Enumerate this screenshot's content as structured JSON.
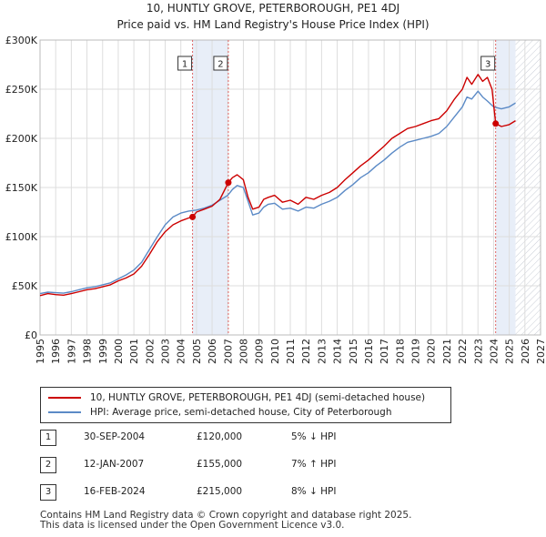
{
  "title_line1": "10, HUNTLY GROVE, PETERBOROUGH, PE1 4DJ",
  "title_line2": "Price paid vs. HM Land Registry's House Price Index (HPI)",
  "colors": {
    "property": "#cc0000",
    "hpi": "#5b8ac6",
    "shade": "#e8eef8",
    "marker_line": "#e06666"
  },
  "chart_data": {
    "type": "line",
    "title": "Price paid vs. HM Land Registry's House Price Index (HPI)",
    "xlabel": "",
    "ylabel": "",
    "xlim": [
      1995,
      2027
    ],
    "ylim": [
      0,
      300000
    ],
    "x_ticks": [
      "1995",
      "1996",
      "1997",
      "1998",
      "1999",
      "2000",
      "2001",
      "2002",
      "2003",
      "2004",
      "2005",
      "2006",
      "2007",
      "2008",
      "2009",
      "2010",
      "2011",
      "2012",
      "2013",
      "2014",
      "2015",
      "2016",
      "2017",
      "2018",
      "2019",
      "2020",
      "2021",
      "2022",
      "2023",
      "2024",
      "2025",
      "2026",
      "2027"
    ],
    "y_ticks": [
      {
        "value": 0,
        "label": "£0"
      },
      {
        "value": 50000,
        "label": "£50K"
      },
      {
        "value": 100000,
        "label": "£100K"
      },
      {
        "value": 150000,
        "label": "£150K"
      },
      {
        "value": 200000,
        "label": "£200K"
      },
      {
        "value": 250000,
        "label": "£250K"
      },
      {
        "value": 300000,
        "label": "£300K"
      }
    ],
    "future_hatch_from": 2025.4,
    "series": [
      {
        "name": "10, HUNTLY GROVE, PETERBOROUGH, PE1 4DJ (semi-detached house)",
        "color": "#cc0000",
        "x": [
          1995.0,
          1995.5,
          1996.0,
          1996.5,
          1997.0,
          1997.5,
          1998.0,
          1998.5,
          1999.0,
          1999.5,
          2000.0,
          2000.5,
          2001.0,
          2001.5,
          2002.0,
          2002.5,
          2003.0,
          2003.5,
          2004.0,
          2004.5,
          2004.75,
          2005.0,
          2005.5,
          2006.0,
          2006.5,
          2007.04,
          2007.3,
          2007.6,
          2008.0,
          2008.3,
          2008.6,
          2009.0,
          2009.3,
          2009.6,
          2010.0,
          2010.5,
          2011.0,
          2011.5,
          2012.0,
          2012.5,
          2013.0,
          2013.5,
          2014.0,
          2014.5,
          2015.0,
          2015.5,
          2016.0,
          2016.5,
          2017.0,
          2017.5,
          2018.0,
          2018.5,
          2019.0,
          2019.5,
          2020.0,
          2020.5,
          2021.0,
          2021.5,
          2022.0,
          2022.3,
          2022.6,
          2023.0,
          2023.3,
          2023.6,
          2023.9,
          2024.13,
          2024.5,
          2025.0,
          2025.4
        ],
        "values": [
          40000,
          42000,
          41000,
          40500,
          42000,
          44000,
          46000,
          47000,
          49000,
          51000,
          55000,
          58000,
          62000,
          70000,
          82000,
          95000,
          105000,
          112000,
          116000,
          119000,
          120000,
          125000,
          128000,
          131000,
          138000,
          155000,
          160000,
          163000,
          158000,
          140000,
          128000,
          130000,
          138000,
          140000,
          142000,
          135000,
          137000,
          133000,
          140000,
          138000,
          142000,
          145000,
          150000,
          158000,
          165000,
          172000,
          178000,
          185000,
          192000,
          200000,
          205000,
          210000,
          212000,
          215000,
          218000,
          220000,
          228000,
          240000,
          250000,
          262000,
          255000,
          265000,
          258000,
          262000,
          250000,
          215000,
          212000,
          214000,
          218000
        ]
      },
      {
        "name": "HPI: Average price, semi-detached house, City of Peterborough",
        "color": "#5b8ac6",
        "x": [
          1995.0,
          1995.5,
          1996.0,
          1996.5,
          1997.0,
          1997.5,
          1998.0,
          1998.5,
          1999.0,
          1999.5,
          2000.0,
          2000.5,
          2001.0,
          2001.5,
          2002.0,
          2002.5,
          2003.0,
          2003.5,
          2004.0,
          2004.5,
          2005.0,
          2005.5,
          2006.0,
          2006.5,
          2007.0,
          2007.3,
          2007.6,
          2008.0,
          2008.3,
          2008.6,
          2009.0,
          2009.3,
          2009.6,
          2010.0,
          2010.5,
          2011.0,
          2011.5,
          2012.0,
          2012.5,
          2013.0,
          2013.5,
          2014.0,
          2014.5,
          2015.0,
          2015.5,
          2016.0,
          2016.5,
          2017.0,
          2017.5,
          2018.0,
          2018.5,
          2019.0,
          2019.5,
          2020.0,
          2020.5,
          2021.0,
          2021.5,
          2022.0,
          2022.3,
          2022.6,
          2023.0,
          2023.3,
          2023.6,
          2024.0,
          2024.5,
          2025.0,
          2025.4
        ],
        "values": [
          42000,
          43500,
          43000,
          42500,
          44000,
          46000,
          48000,
          49000,
          51000,
          53000,
          57000,
          61000,
          66000,
          74000,
          87000,
          100000,
          112000,
          120000,
          124000,
          126000,
          127000,
          129000,
          132000,
          137000,
          142000,
          148000,
          152000,
          150000,
          136000,
          122000,
          124000,
          130000,
          133000,
          134000,
          128000,
          129000,
          126000,
          130000,
          129000,
          133000,
          136000,
          140000,
          147000,
          153000,
          160000,
          165000,
          172000,
          178000,
          185000,
          191000,
          196000,
          198000,
          200000,
          202000,
          205000,
          212000,
          222000,
          232000,
          242000,
          240000,
          248000,
          242000,
          238000,
          232000,
          230000,
          232000,
          236000
        ]
      }
    ],
    "sales": [
      {
        "num": "1",
        "x": 2004.75,
        "value": 120000,
        "date": "30-SEP-2004",
        "price": "£120,000",
        "hpi": "5% ↓ HPI"
      },
      {
        "num": "2",
        "x": 2007.04,
        "value": 155000,
        "date": "12-JAN-2007",
        "price": "£155,000",
        "hpi": "7% ↑ HPI"
      },
      {
        "num": "3",
        "x": 2024.13,
        "value": 215000,
        "date": "16-FEB-2024",
        "price": "£215,000",
        "hpi": "8% ↓ HPI"
      }
    ],
    "shaded_ranges": [
      [
        2004.75,
        2007.04
      ],
      [
        2024.13,
        2025.4
      ]
    ]
  },
  "legend": {
    "property_label": "10, HUNTLY GROVE, PETERBOROUGH, PE1 4DJ (semi-detached house)",
    "hpi_label": "HPI: Average price, semi-detached house, City of Peterborough"
  },
  "footer": {
    "line1": "Contains HM Land Registry data © Crown copyright and database right 2025.",
    "line2": "This data is licensed under the Open Government Licence v3.0."
  }
}
